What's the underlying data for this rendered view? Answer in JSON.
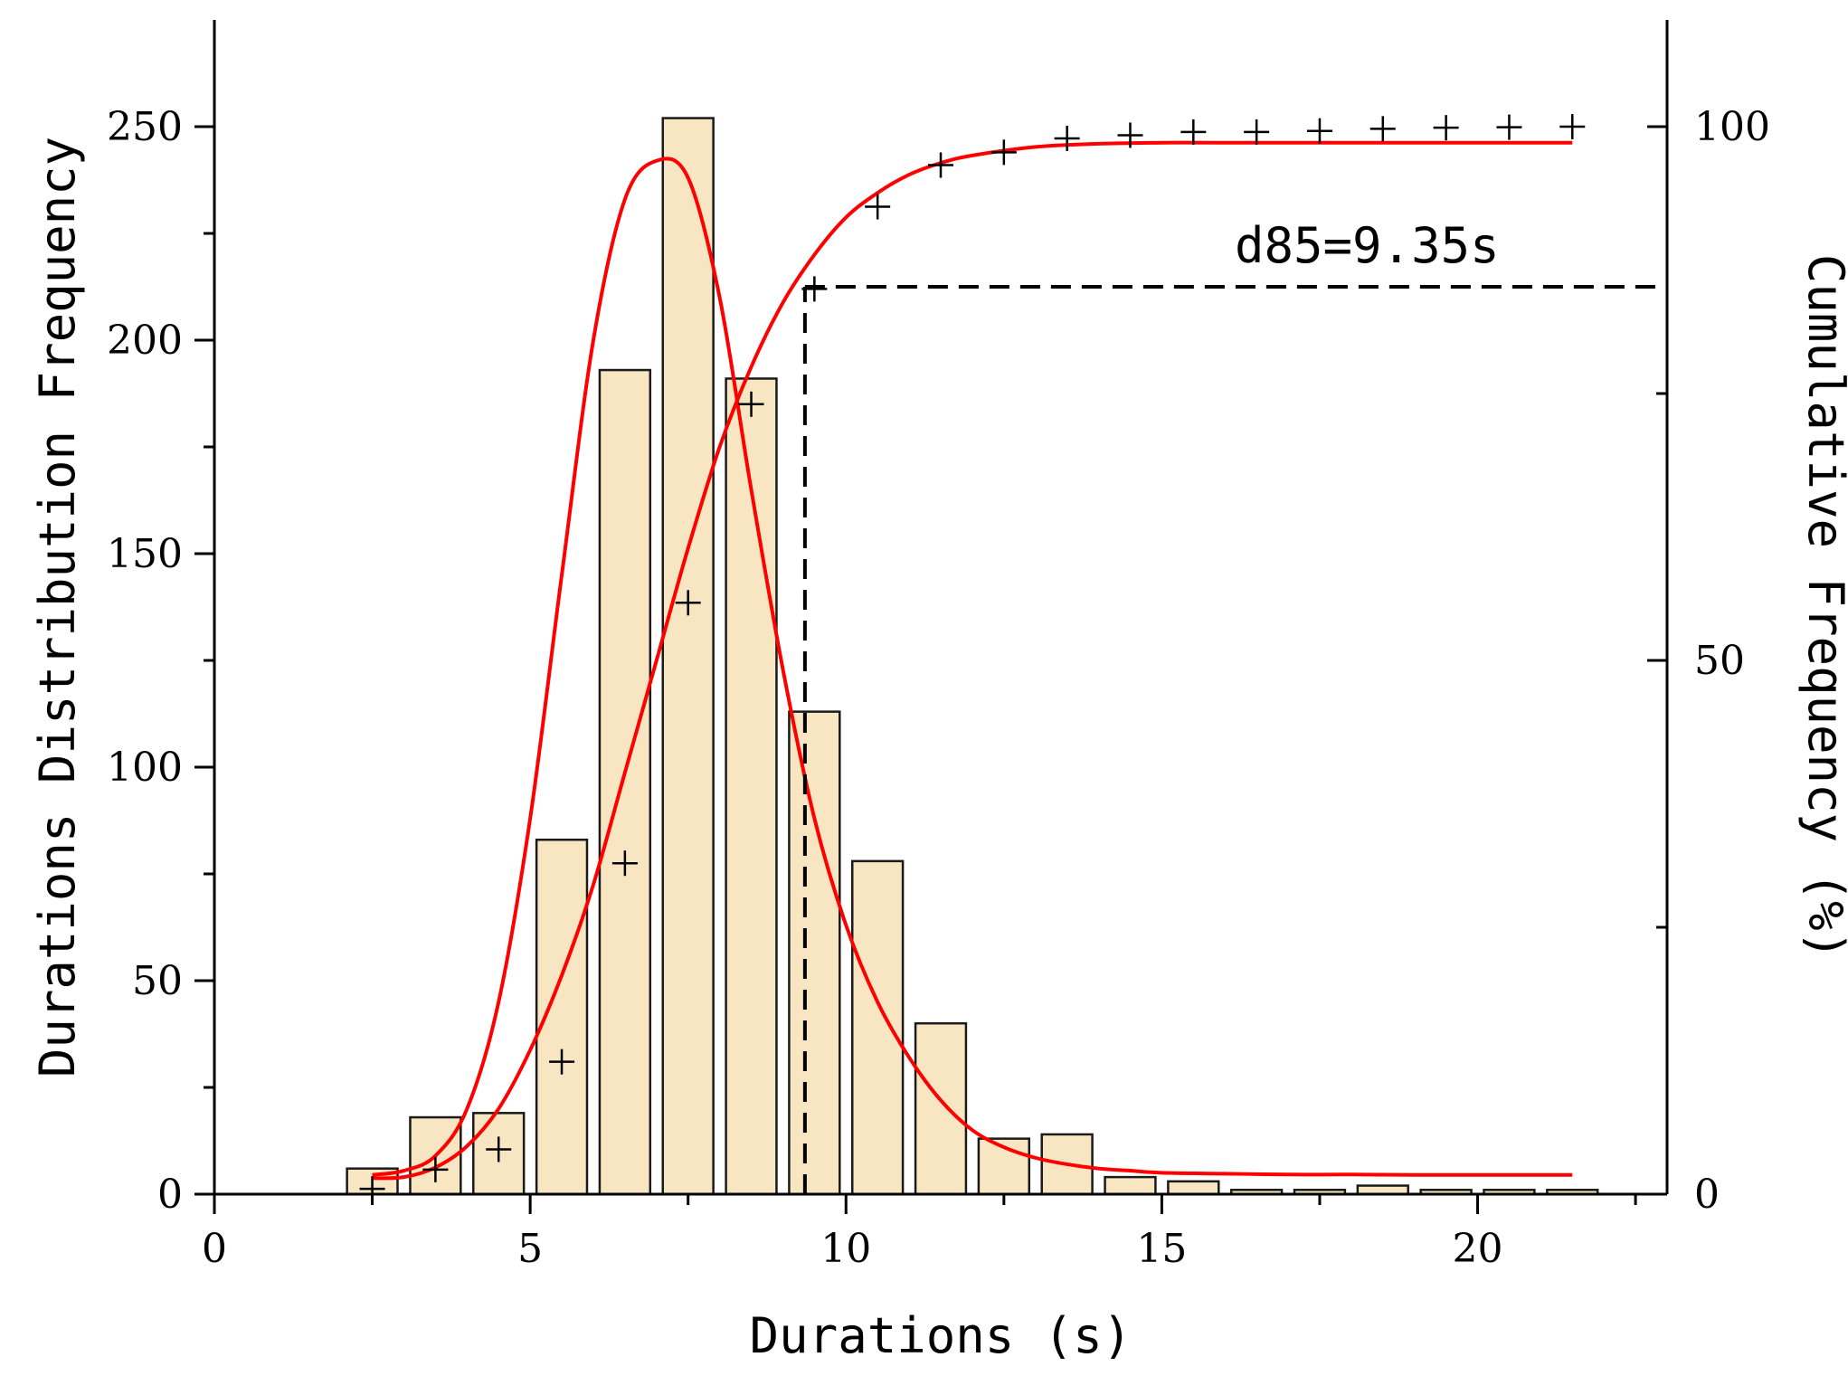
{
  "chart_data": {
    "type": "bar",
    "xlabel": "Durations (s)",
    "ylabel": "Durations Distribution Frequency",
    "y2label": "Cumulative Frequency (%)",
    "xlim": [
      0,
      23
    ],
    "ylim": [
      0,
      275
    ],
    "y2lim": [
      0,
      110
    ],
    "xticks": [
      0,
      5,
      10,
      15,
      20
    ],
    "yticks": [
      0,
      50,
      100,
      150,
      200,
      250
    ],
    "y2ticks": [
      0,
      50,
      100
    ],
    "annotation": "d85=9.35s",
    "d85": 9.35,
    "d85_cumulative_percent": 85,
    "histogram": {
      "bin_width": 0.8,
      "x": [
        2.5,
        3.5,
        4.5,
        5.5,
        6.5,
        7.5,
        8.5,
        9.5,
        10.5,
        11.5,
        12.5,
        13.5,
        14.5,
        15.5,
        16.5,
        17.5,
        18.5,
        19.5,
        20.5,
        21.5
      ],
      "values": [
        6,
        18,
        19,
        83,
        193,
        252,
        191,
        113,
        78,
        40,
        13,
        14,
        4,
        3,
        1,
        1,
        2,
        1,
        1,
        1
      ],
      "fill": "#f8e6c3"
    },
    "cumulative_points": {
      "marker": "+",
      "x": [
        2.5,
        3.5,
        4.5,
        5.5,
        6.5,
        7.5,
        8.5,
        9.5,
        10.5,
        11.5,
        12.5,
        13.5,
        14.5,
        15.5,
        16.5,
        17.5,
        18.5,
        19.5,
        20.5,
        21.5
      ],
      "values": [
        0.5,
        2.3,
        4.2,
        12.4,
        31.0,
        55.4,
        74.0,
        84.8,
        92.5,
        96.4,
        97.6,
        98.9,
        99.2,
        99.5,
        99.5,
        99.6,
        99.8,
        99.9,
        99.95,
        100
      ]
    },
    "distribution_fit": {
      "color": "#ff0000",
      "x": [
        2.5,
        3,
        3.5,
        4,
        4.5,
        5,
        5.5,
        6,
        6.5,
        7,
        7.5,
        8,
        8.5,
        9,
        9.5,
        10,
        10.5,
        11,
        11.5,
        12,
        12.5,
        13,
        13.5,
        14,
        14.5,
        15,
        16,
        17,
        18,
        19,
        20,
        21,
        21.5
      ],
      "values": [
        4.5,
        5.5,
        9,
        20,
        45,
        88,
        145,
        200,
        233,
        242,
        238,
        210,
        165,
        123,
        88,
        63,
        45,
        32,
        22,
        15,
        11,
        8.5,
        7,
        6,
        5.5,
        5,
        4.8,
        4.6,
        4.6,
        4.5,
        4.5,
        4.5,
        4.5
      ]
    },
    "cumulative_fit": {
      "color": "#ff0000",
      "x": [
        2.5,
        3,
        3.5,
        4,
        4.5,
        5,
        5.5,
        6,
        6.5,
        7,
        7.5,
        8,
        8.5,
        9,
        9.5,
        10,
        10.5,
        11,
        11.5,
        12,
        13,
        14,
        15,
        16,
        18,
        20,
        21.5
      ],
      "values": [
        1.5,
        1.6,
        2.5,
        4.5,
        8,
        13.5,
        20.5,
        29,
        39.5,
        50,
        60.5,
        70,
        77.5,
        83.5,
        88,
        91.5,
        93.8,
        95.5,
        96.6,
        97.3,
        98.1,
        98.4,
        98.5,
        98.5,
        98.5,
        98.5,
        98.5
      ]
    }
  }
}
